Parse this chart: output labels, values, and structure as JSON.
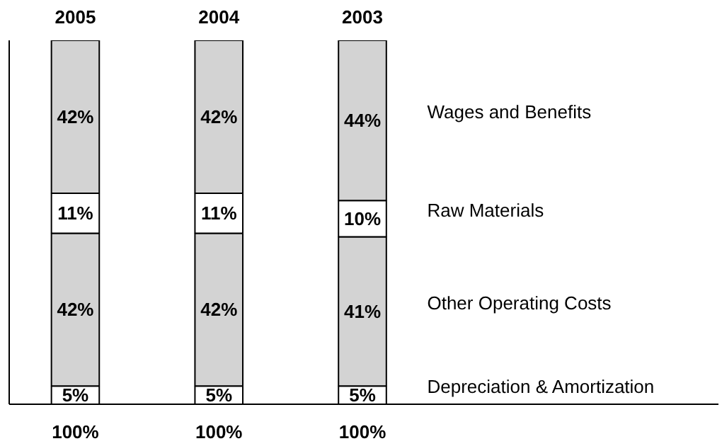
{
  "chart_data": {
    "type": "bar",
    "stacked": true,
    "categories": [
      "2005",
      "2004",
      "2003"
    ],
    "series": [
      {
        "name": "Depreciation & Amortization",
        "color": "#ffffff",
        "values": [
          5,
          5,
          5
        ],
        "value_labels": [
          "5%",
          "5%",
          "5%"
        ]
      },
      {
        "name": "Other Operating Costs",
        "color": "#d3d3d3",
        "values": [
          42,
          42,
          41
        ],
        "value_labels": [
          "42%",
          "42%",
          "41%"
        ]
      },
      {
        "name": "Raw Materials",
        "color": "#ffffff",
        "values": [
          11,
          11,
          10
        ],
        "value_labels": [
          "11%",
          "11%",
          "10%"
        ]
      },
      {
        "name": "Wages and Benefits",
        "color": "#d3d3d3",
        "values": [
          42,
          42,
          44
        ],
        "value_labels": [
          "42%",
          "42%",
          "44%"
        ]
      }
    ],
    "totals": [
      "100%",
      "100%",
      "100%"
    ],
    "tick_labels": "x",
    "grid": false,
    "legend": false
  }
}
